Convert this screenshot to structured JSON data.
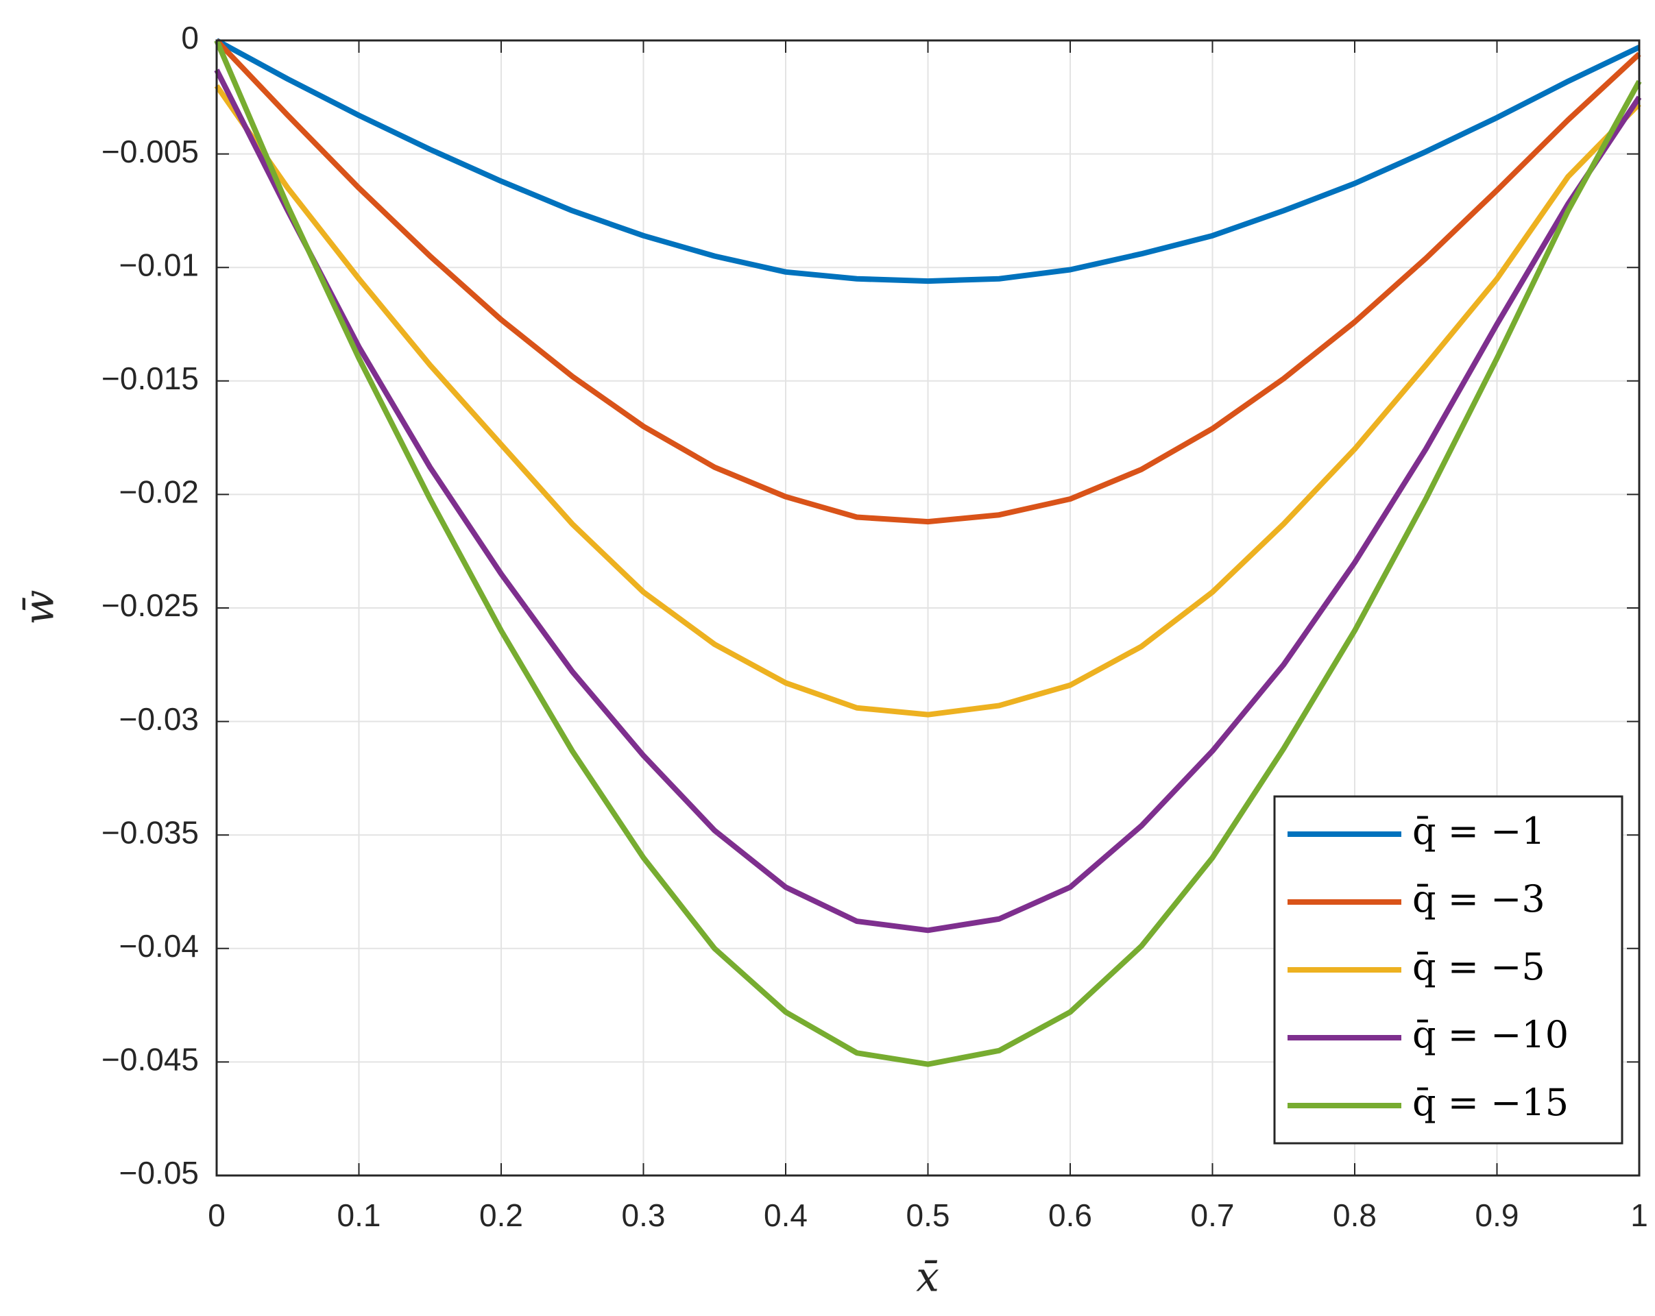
{
  "chart_data": {
    "type": "line",
    "xlabel": "x̄",
    "ylabel": "w̄",
    "x": [
      0,
      0.05,
      0.1,
      0.15,
      0.2,
      0.25,
      0.3,
      0.35,
      0.4,
      0.45,
      0.5,
      0.55,
      0.6,
      0.65,
      0.7,
      0.75,
      0.8,
      0.85,
      0.9,
      0.95,
      1
    ],
    "series": [
      {
        "name": "q̄ = −1",
        "color": "#0072bd",
        "values": [
          0,
          -0.0017,
          -0.0033,
          -0.0048,
          -0.0062,
          -0.0075,
          -0.0086,
          -0.0095,
          -0.0102,
          -0.0105,
          -0.0106,
          -0.0105,
          -0.0101,
          -0.0094,
          -0.0086,
          -0.0075,
          -0.0063,
          -0.0049,
          -0.0034,
          -0.0018,
          -0.0003
        ]
      },
      {
        "name": "q̄ = −3",
        "color": "#d95319",
        "values": [
          0,
          -0.0033,
          -0.0065,
          -0.0095,
          -0.0123,
          -0.0148,
          -0.017,
          -0.0188,
          -0.0201,
          -0.021,
          -0.0212,
          -0.0209,
          -0.0202,
          -0.0189,
          -0.0171,
          -0.0149,
          -0.0124,
          -0.0096,
          -0.0066,
          -0.0035,
          -0.0006
        ]
      },
      {
        "name": "q̄ = −5",
        "color": "#edb120",
        "values": [
          -0.002,
          -0.0065,
          -0.0105,
          -0.0143,
          -0.0178,
          -0.0213,
          -0.0243,
          -0.0266,
          -0.0283,
          -0.0294,
          -0.0297,
          -0.0293,
          -0.0284,
          -0.0267,
          -0.0243,
          -0.0213,
          -0.018,
          -0.0143,
          -0.0105,
          -0.006,
          -0.0028
        ]
      },
      {
        "name": "q̄ = −10",
        "color": "#7e2f8e",
        "values": [
          -0.0013,
          -0.0075,
          -0.0135,
          -0.0188,
          -0.0235,
          -0.0278,
          -0.0315,
          -0.0348,
          -0.0373,
          -0.0388,
          -0.0392,
          -0.0387,
          -0.0373,
          -0.0346,
          -0.0313,
          -0.0275,
          -0.023,
          -0.018,
          -0.0125,
          -0.0072,
          -0.0025
        ]
      },
      {
        "name": "q̄ = −15",
        "color": "#77ac30",
        "values": [
          0,
          -0.0073,
          -0.014,
          -0.0202,
          -0.026,
          -0.0313,
          -0.036,
          -0.04,
          -0.0428,
          -0.0446,
          -0.0451,
          -0.0445,
          -0.0428,
          -0.0399,
          -0.036,
          -0.0312,
          -0.026,
          -0.0202,
          -0.014,
          -0.0075,
          -0.0018
        ]
      }
    ],
    "xlim": [
      0,
      1
    ],
    "xticks": [
      0,
      0.1,
      0.2,
      0.3,
      0.4,
      0.5,
      0.6,
      0.7,
      0.8,
      0.9,
      1
    ],
    "ylim": [
      -0.05,
      0
    ],
    "yticks": [
      {
        "value": -0.05,
        "label": "−0.05"
      },
      {
        "value": -0.045,
        "label": "−0.045"
      },
      {
        "value": -0.04,
        "label": "−0.04"
      },
      {
        "value": -0.035,
        "label": "−0.035"
      },
      {
        "value": -0.03,
        "label": "−0.03"
      },
      {
        "value": -0.025,
        "label": "−0.025"
      },
      {
        "value": -0.02,
        "label": "−0.02"
      },
      {
        "value": -0.015,
        "label": "−0.015"
      },
      {
        "value": -0.01,
        "label": "−0.01"
      },
      {
        "value": -0.005,
        "label": "−0.005"
      },
      0
    ],
    "grid": true,
    "legend_position": "lower right"
  }
}
